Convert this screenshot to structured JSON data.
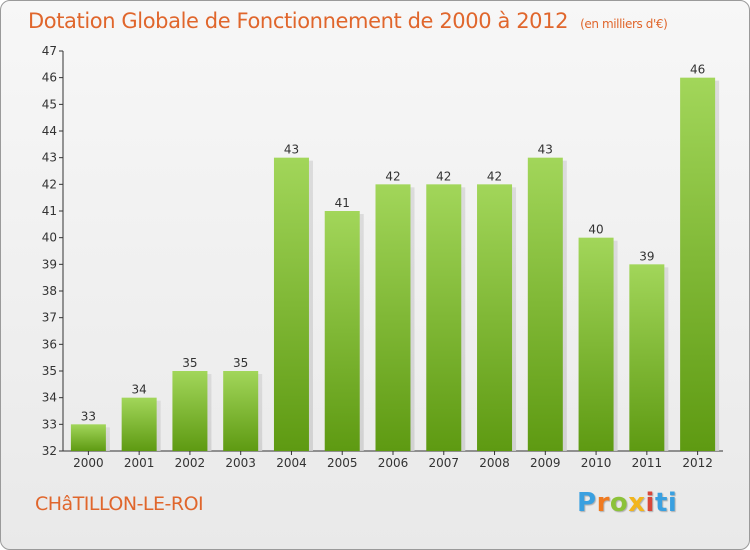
{
  "header": {
    "title": "Dotation Globale de Fonctionnement de 2000 à 2012",
    "units": "(en milliers d'€)"
  },
  "footer": {
    "commune": "CHâTILLON-LE-ROI",
    "logo": "Proxiti",
    "logo_colors": [
      "#3aa0e0",
      "#f07a20",
      "#8cc23a",
      "#f2b51c",
      "#d8463a",
      "#3aa0e0"
    ]
  },
  "chart_data": {
    "type": "bar",
    "title": "Dotation Globale de Fonctionnement de 2000 à 2012",
    "subtitle": "(en milliers d'€)",
    "xlabel": "",
    "ylabel": "",
    "categories": [
      "2000",
      "2001",
      "2002",
      "2003",
      "2004",
      "2005",
      "2006",
      "2007",
      "2008",
      "2009",
      "2010",
      "2011",
      "2012"
    ],
    "values": [
      33,
      34,
      35,
      35,
      43,
      41,
      42,
      42,
      42,
      43,
      40,
      39,
      46
    ],
    "ylim": [
      32,
      47
    ],
    "yticks": [
      32,
      33,
      34,
      35,
      36,
      37,
      38,
      39,
      40,
      41,
      42,
      43,
      44,
      45,
      46,
      47
    ],
    "grid": false,
    "bar_color_top": "#a2d65a",
    "bar_color_bottom": "#5e9a12"
  }
}
